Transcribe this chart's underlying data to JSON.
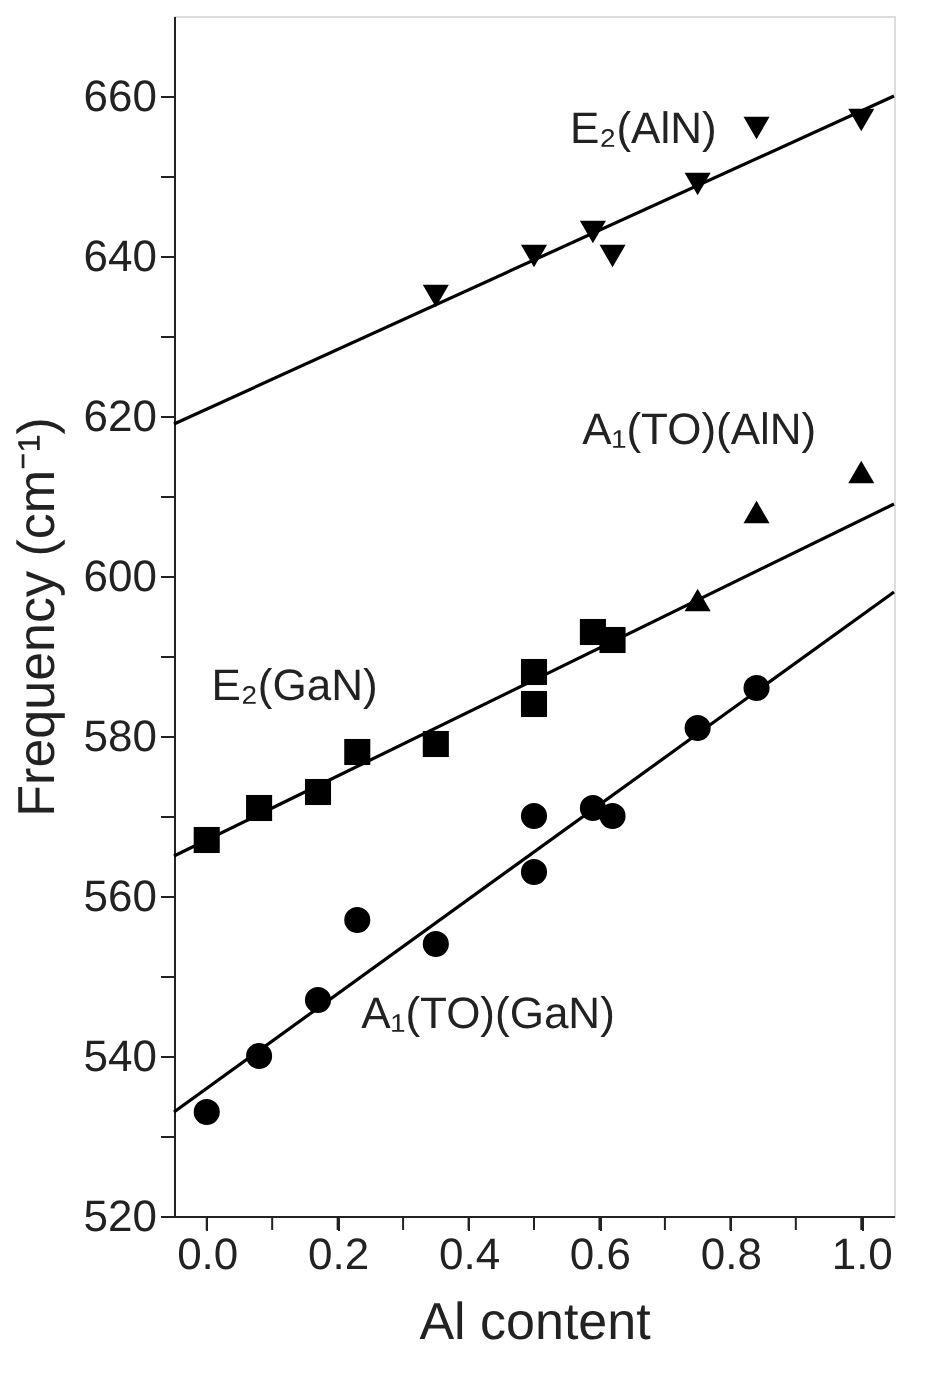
{
  "chart_data": {
    "type": "scatter",
    "xlabel": "Al content",
    "ylabel": "Frequency (cm⁻¹)",
    "xlim": [
      -0.05,
      1.05
    ],
    "ylim": [
      520,
      670
    ],
    "xticks": [
      {
        "value": 0,
        "label": "0.0"
      },
      {
        "value": 0.1,
        "label": null
      },
      0.2,
      {
        "value": 0.3,
        "label": null
      },
      0.4,
      {
        "value": 0.5,
        "label": null
      },
      0.6,
      {
        "value": 0.7,
        "label": null
      },
      0.8,
      {
        "value": 0.9,
        "label": null
      },
      {
        "value": 1,
        "label": "1.0"
      }
    ],
    "yticks": [
      520,
      {
        "value": 530,
        "label": null
      },
      540,
      {
        "value": 550,
        "label": null
      },
      560,
      {
        "value": 570,
        "label": null
      },
      580,
      {
        "value": 590,
        "label": null
      },
      600,
      {
        "value": 610,
        "label": null
      },
      620,
      {
        "value": 630,
        "label": null
      },
      640,
      {
        "value": 650,
        "label": null
      },
      660
    ],
    "grid": false,
    "series": [
      {
        "marker": "triangle-down",
        "color": "#000000",
        "x": [
          0.35,
          0.5,
          0.59,
          0.62,
          0.75,
          0.84,
          1.0
        ],
        "values": [
          635,
          640,
          643,
          640,
          649,
          656,
          657
        ]
      },
      {
        "marker": "triangle",
        "color": "#000000",
        "x": [
          0.75,
          0.84,
          1.0
        ],
        "values": [
          597,
          608,
          613
        ]
      },
      {
        "marker": "square",
        "color": "#000000",
        "x": [
          0.0,
          0.08,
          0.17,
          0.23,
          0.35,
          0.5,
          0.5,
          0.59,
          0.62
        ],
        "values": [
          567,
          571,
          573,
          578,
          579,
          588,
          584,
          593,
          592
        ]
      },
      {
        "marker": "circle",
        "color": "#000000",
        "x": [
          0.0,
          0.08,
          0.17,
          0.23,
          0.35,
          0.5,
          0.5,
          0.59,
          0.62,
          0.75,
          0.84
        ],
        "values": [
          533,
          540,
          547,
          557,
          554,
          570,
          563,
          571,
          570,
          581,
          586
        ]
      },
      {
        "type": "line",
        "color": "#000000",
        "line_style": "solid",
        "x": [
          -0.05,
          1.05
        ],
        "values": [
          619,
          660
        ]
      },
      {
        "type": "line",
        "color": "#000000",
        "line_style": "solid",
        "x": [
          -0.05,
          1.05
        ],
        "values": [
          565,
          609
        ]
      },
      {
        "type": "line",
        "color": "#000000",
        "line_style": "solid",
        "x": [
          -0.05,
          1.05
        ],
        "values": [
          533,
          598
        ]
      }
    ],
    "annotations": [
      "E₂(AlN)",
      "A₁(TO)(AlN)",
      "E₂(GaN)",
      "A₁(TO)(GaN)"
    ]
  }
}
